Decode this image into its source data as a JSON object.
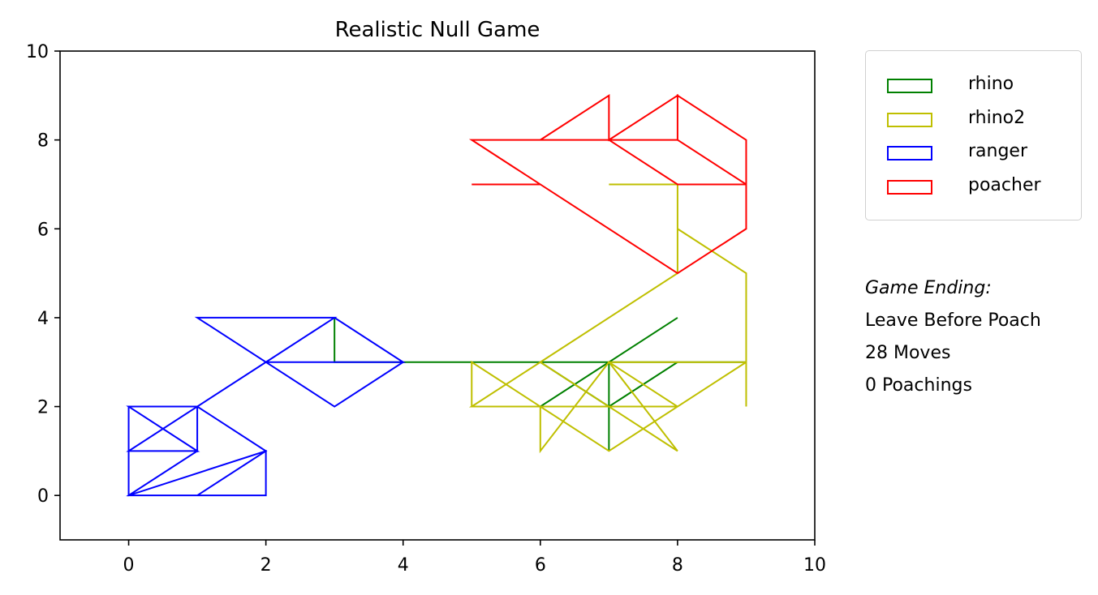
{
  "chart_data": {
    "type": "line",
    "title": "Realistic Null Game",
    "xlabel": "",
    "ylabel": "",
    "xlim": [
      -1,
      10
    ],
    "ylim": [
      -1,
      10
    ],
    "xticks": [
      "0",
      "2",
      "4",
      "6",
      "8",
      "10"
    ],
    "yticks": [
      "0",
      "2",
      "4",
      "6",
      "8",
      "10"
    ],
    "grid": false,
    "legend_position": "outside-right",
    "series": [
      {
        "name": "rhino",
        "color": "#008000",
        "points": [
          [
            3,
            4
          ],
          [
            3,
            3
          ],
          [
            4,
            3
          ],
          [
            5,
            3
          ],
          [
            6,
            3
          ],
          [
            7,
            2
          ],
          [
            6,
            2
          ],
          [
            7,
            3
          ],
          [
            7,
            1
          ],
          [
            7,
            2
          ],
          [
            8,
            3
          ],
          [
            7,
            3
          ],
          [
            8,
            4
          ],
          [
            7,
            3
          ],
          [
            9,
            3
          ],
          [
            8,
            3
          ],
          [
            3,
            3
          ]
        ]
      },
      {
        "name": "rhino2",
        "color": "#bfbf00",
        "points": [
          [
            7,
            7
          ],
          [
            8,
            7
          ],
          [
            8,
            6
          ],
          [
            9,
            5
          ],
          [
            9,
            2
          ],
          [
            9,
            3
          ],
          [
            8,
            2
          ],
          [
            7,
            3
          ],
          [
            6,
            1
          ],
          [
            6,
            2
          ],
          [
            5,
            2
          ],
          [
            5,
            3
          ],
          [
            6,
            2
          ],
          [
            7,
            1
          ],
          [
            8,
            2
          ],
          [
            5,
            2
          ],
          [
            6,
            3
          ],
          [
            8,
            5
          ],
          [
            8,
            7
          ],
          [
            8,
            6
          ],
          [
            9,
            5
          ],
          [
            9,
            3
          ],
          [
            7,
            3
          ],
          [
            8,
            1
          ],
          [
            7,
            2
          ],
          [
            6,
            3
          ],
          [
            8,
            5
          ]
        ]
      },
      {
        "name": "ranger",
        "color": "#0000ff",
        "points": [
          [
            0,
            2
          ],
          [
            1,
            1
          ],
          [
            0,
            1
          ],
          [
            1,
            2
          ],
          [
            0,
            2
          ],
          [
            0,
            0
          ],
          [
            1,
            0
          ],
          [
            2,
            0
          ],
          [
            2,
            1
          ],
          [
            0,
            0
          ],
          [
            0,
            1
          ],
          [
            1,
            2
          ],
          [
            2,
            3
          ],
          [
            4,
            3
          ],
          [
            3,
            4
          ],
          [
            1,
            4
          ],
          [
            3,
            2
          ],
          [
            4,
            3
          ],
          [
            3,
            4
          ],
          [
            2,
            4
          ],
          [
            3,
            4
          ],
          [
            2,
            3
          ],
          [
            1,
            2
          ],
          [
            1,
            1
          ],
          [
            0,
            2
          ],
          [
            1,
            2
          ],
          [
            2,
            1
          ],
          [
            1,
            0
          ],
          [
            0,
            0
          ],
          [
            1,
            1
          ],
          [
            0,
            2
          ]
        ]
      },
      {
        "name": "poacher",
        "color": "#ff0000",
        "points": [
          [
            5,
            7
          ],
          [
            6,
            7
          ],
          [
            5,
            8
          ],
          [
            6,
            8
          ],
          [
            7,
            9
          ],
          [
            7,
            8
          ],
          [
            8,
            9
          ],
          [
            8,
            8
          ],
          [
            7,
            8
          ],
          [
            6,
            8
          ],
          [
            7,
            9
          ],
          [
            7,
            8
          ],
          [
            8,
            7
          ],
          [
            9,
            7
          ],
          [
            9,
            6
          ],
          [
            8,
            5
          ],
          [
            9,
            6
          ],
          [
            9,
            7
          ],
          [
            8,
            8
          ],
          [
            8,
            9
          ],
          [
            9,
            8
          ],
          [
            9,
            7
          ],
          [
            8,
            7
          ],
          [
            9,
            7
          ],
          [
            9,
            6
          ],
          [
            8,
            5
          ],
          [
            6,
            7
          ],
          [
            5,
            7
          ]
        ]
      }
    ]
  },
  "annotations": {
    "heading": "Game Ending:",
    "ending": "Leave Before Poach",
    "moves": "28 Moves",
    "poachings": "0 Poachings"
  }
}
